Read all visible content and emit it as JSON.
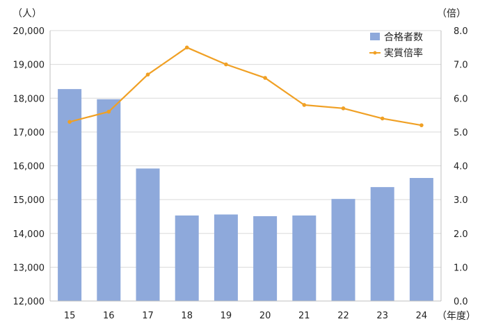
{
  "chart_data": {
    "type": "bar+line",
    "categories": [
      "15",
      "16",
      "17",
      "18",
      "19",
      "20",
      "21",
      "22",
      "23",
      "24"
    ],
    "series": [
      {
        "name": "合格者数",
        "kind": "bar",
        "axis": "left",
        "color": "#8EA9DB",
        "values": [
          18270,
          17970,
          15920,
          14530,
          14560,
          14510,
          14530,
          15020,
          15370,
          15640
        ]
      },
      {
        "name": "実質倍率",
        "kind": "line",
        "axis": "right",
        "color": "#F0A024",
        "values": [
          5.3,
          5.6,
          6.7,
          7.5,
          7.0,
          6.6,
          5.8,
          5.7,
          5.4,
          5.2
        ]
      }
    ],
    "y_left": {
      "unit_label": "（人）",
      "min": 12000,
      "max": 20000,
      "step": 1000,
      "tick_labels": [
        "12,000",
        "13,000",
        "14,000",
        "15,000",
        "16,000",
        "17,000",
        "18,000",
        "19,000",
        "20,000"
      ]
    },
    "y_right": {
      "unit_label": "（倍）",
      "min": 0,
      "max": 8,
      "step": 1,
      "tick_labels": [
        "0.0",
        "1.0",
        "2.0",
        "3.0",
        "4.0",
        "5.0",
        "6.0",
        "7.0",
        "8.0"
      ]
    },
    "x_unit_label": "（年度）",
    "grid": true,
    "legend": "top-right"
  }
}
